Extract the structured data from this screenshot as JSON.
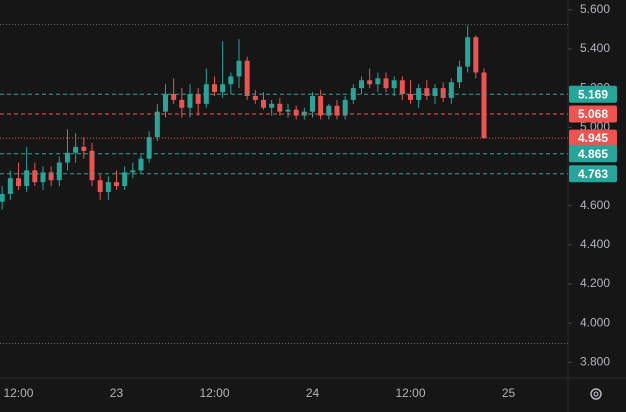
{
  "chart_data": {
    "type": "candlestick",
    "categories": [
      null,
      null,
      "12:00",
      null,
      null,
      null,
      null,
      null,
      null,
      null,
      null,
      null,
      null,
      null,
      "23",
      null,
      null,
      null,
      null,
      null,
      null,
      null,
      null,
      null,
      null,
      null,
      "12:00",
      null,
      null,
      null,
      null,
      null,
      null,
      null,
      null,
      null,
      null,
      null,
      "24",
      null,
      null,
      null,
      null,
      null,
      null,
      null,
      null,
      null,
      null,
      null,
      "12:00",
      null,
      null,
      null,
      null,
      null,
      null,
      null,
      null,
      null,
      null,
      null,
      "25"
    ],
    "open": [
      4.62,
      4.66,
      4.74,
      4.7,
      4.78,
      4.72,
      4.77,
      4.73,
      4.82,
      4.87,
      4.9,
      4.88,
      4.73,
      4.67,
      4.72,
      4.7,
      4.77,
      4.78,
      4.84,
      4.95,
      5.08,
      5.17,
      5.14,
      5.1,
      5.17,
      5.12,
      5.22,
      5.18,
      5.22,
      5.26,
      5.34,
      5.16,
      5.14,
      5.1,
      5.12,
      5.08,
      5.09,
      5.06,
      5.08,
      5.16,
      5.06,
      5.11,
      5.06,
      5.14,
      5.2,
      5.24,
      5.22,
      5.25,
      5.2,
      5.24,
      5.17,
      5.14,
      5.2,
      5.16,
      5.2,
      5.15,
      5.23,
      5.31,
      5.46,
      5.28,
      null,
      null,
      null
    ],
    "high": [
      4.7,
      4.78,
      4.82,
      4.9,
      4.82,
      4.8,
      4.8,
      4.85,
      4.99,
      4.97,
      4.95,
      4.92,
      4.76,
      4.75,
      4.78,
      4.8,
      4.82,
      4.86,
      4.98,
      5.12,
      5.22,
      5.25,
      5.2,
      5.22,
      5.2,
      5.3,
      5.26,
      5.44,
      5.28,
      5.45,
      5.36,
      5.19,
      5.18,
      5.14,
      5.15,
      5.12,
      5.11,
      5.1,
      5.18,
      5.19,
      5.12,
      5.14,
      5.16,
      5.22,
      5.26,
      5.3,
      5.28,
      5.28,
      5.26,
      5.26,
      5.24,
      5.22,
      5.24,
      5.22,
      5.23,
      5.25,
      5.34,
      5.52,
      5.47,
      5.3,
      null,
      null,
      null
    ],
    "low": [
      4.58,
      4.63,
      4.68,
      4.67,
      4.7,
      4.68,
      4.7,
      4.7,
      4.78,
      4.82,
      4.84,
      4.7,
      4.63,
      4.63,
      4.68,
      4.68,
      4.74,
      4.76,
      4.82,
      4.93,
      5.05,
      5.12,
      5.05,
      5.05,
      5.06,
      5.1,
      5.16,
      5.15,
      5.17,
      5.2,
      5.14,
      5.12,
      5.09,
      5.06,
      5.06,
      5.05,
      5.04,
      5.04,
      5.05,
      5.04,
      5.04,
      5.04,
      5.04,
      5.12,
      5.17,
      5.2,
      5.18,
      5.18,
      5.16,
      5.14,
      5.12,
      5.1,
      5.14,
      5.12,
      5.13,
      5.12,
      5.2,
      5.28,
      5.25,
      4.94,
      null,
      null,
      null
    ],
    "close": [
      4.66,
      4.74,
      4.7,
      4.78,
      4.72,
      4.77,
      4.73,
      4.82,
      4.87,
      4.9,
      4.88,
      4.73,
      4.67,
      4.72,
      4.7,
      4.77,
      4.78,
      4.84,
      4.95,
      5.08,
      5.17,
      5.14,
      5.1,
      5.17,
      5.12,
      5.22,
      5.18,
      5.22,
      5.26,
      5.34,
      5.16,
      5.14,
      5.1,
      5.12,
      5.08,
      5.09,
      5.06,
      5.08,
      5.16,
      5.06,
      5.11,
      5.06,
      5.14,
      5.2,
      5.24,
      5.22,
      5.25,
      5.2,
      5.24,
      5.17,
      5.14,
      5.2,
      5.16,
      5.2,
      5.15,
      5.23,
      5.31,
      5.46,
      5.28,
      4.945,
      null,
      null,
      null
    ],
    "up_color": "#26a69a",
    "down_color": "#ef5350",
    "ylim": [
      3.72,
      5.65
    ],
    "yticks": [
      {
        "value": 5.6,
        "label": "5.600"
      },
      {
        "value": 5.4,
        "label": "5.400"
      },
      {
        "value": 5.2,
        "label": "5.200"
      },
      {
        "value": 5.0,
        "label": "5.000"
      },
      {
        "value": 4.6,
        "label": "4.600"
      },
      {
        "value": 4.4,
        "label": "4.400"
      },
      {
        "value": 4.2,
        "label": "4.200"
      },
      {
        "value": 4.0,
        "label": "4.000"
      },
      {
        "value": 3.8,
        "label": "3.800"
      }
    ],
    "levels": [
      {
        "value": 5.169,
        "color": "#26a69a",
        "style": "dashed"
      },
      {
        "value": 5.068,
        "color": "#ef5350",
        "style": "dashed"
      },
      {
        "value": 4.945,
        "color": "#ef5350",
        "style": "dotted"
      },
      {
        "value": 4.865,
        "color": "#26a69a",
        "style": "dashed"
      },
      {
        "value": 4.763,
        "color": "#26a69a",
        "style": "dashed"
      }
    ],
    "range_lines": [
      5.524,
      3.896
    ]
  }
}
